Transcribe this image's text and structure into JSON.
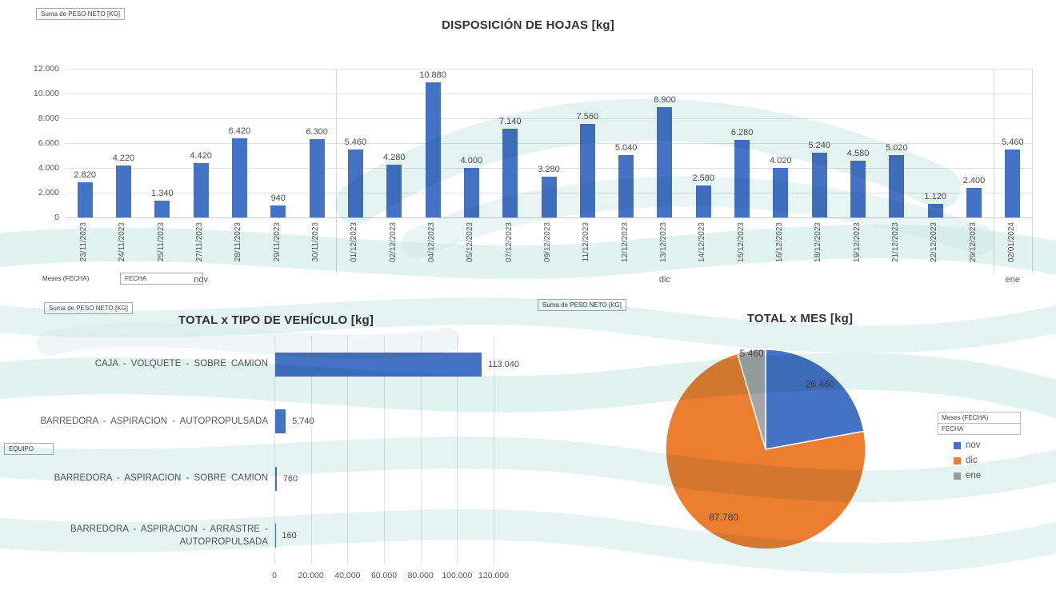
{
  "app": {
    "description": "Excel pivot chart dashboard - leaf disposal weights"
  },
  "colors": {
    "bar_blue": "#4472C4",
    "pie_orange": "#ED7D31",
    "pie_gray": "#A5A5A5",
    "gridline": "#e2e2e2",
    "text_gray": "#595959",
    "watermark_teal": "#cde9e4"
  },
  "field_buttons": {
    "value_field": "Suma de PESO NETO [KG]",
    "meses_group": "Meses (FECHA)",
    "fecha": "FECHA",
    "equipo": "EQUIPO"
  },
  "chart_data": [
    {
      "type": "bar",
      "title": "DISPOSICIÓN DE HOJAS [kg]",
      "value_field_label": "Suma de PESO NETO [KG]",
      "categories": [
        "23/11/2023",
        "24/11/2023",
        "25/11/2023",
        "27/11/2023",
        "28/11/2023",
        "29/11/2023",
        "30/11/2023",
        "01/12/2023",
        "02/12/2023",
        "04/12/2023",
        "05/12/2023",
        "07/12/2023",
        "09/12/2023",
        "11/12/2023",
        "12/12/2023",
        "13/12/2023",
        "14/12/2023",
        "15/12/2023",
        "16/12/2023",
        "18/12/2023",
        "19/12/2023",
        "21/12/2023",
        "22/12/2023",
        "29/12/2023",
        "02/01/2024"
      ],
      "values": [
        2820,
        4220,
        1340,
        4420,
        6420,
        940,
        6300,
        5460,
        4280,
        10880,
        4000,
        7140,
        3280,
        7560,
        5040,
        8900,
        2580,
        6280,
        4020,
        5240,
        4580,
        5020,
        1120,
        2400,
        5460
      ],
      "value_labels": [
        "2.820",
        "4.220",
        "1.340",
        "4.420",
        "6.420",
        "940",
        "6.300",
        "5.460",
        "4.280",
        "10.880",
        "4.000",
        "7.140",
        "3.280",
        "7.560",
        "5.040",
        "8.900",
        "2.580",
        "6.280",
        "4.020",
        "5.240",
        "4.580",
        "5.020",
        "1.120",
        "2.400",
        "5.460"
      ],
      "month_groups": [
        {
          "label": "nov",
          "count": 7
        },
        {
          "label": "dic",
          "count": 17
        },
        {
          "label": "ene",
          "count": 1
        }
      ],
      "y_ticks": [
        "0",
        "2.000",
        "4.000",
        "6.000",
        "8.000",
        "10.000",
        "12.000"
      ],
      "ylim": [
        0,
        12000
      ],
      "grid": true,
      "xlabel": "",
      "ylabel": ""
    },
    {
      "type": "bar",
      "orientation": "horizontal",
      "title": "TOTAL x TIPO DE VEHÍCULO [kg]",
      "value_field_label": "Suma de PESO NETO [KG]",
      "axis_field_label": "EQUIPO",
      "categories": [
        "CAJA - VOLQUETE - SOBRE CAMION",
        "BARREDORA - ASPIRACION - AUTOPROPULSADA",
        "BARREDORA - ASPIRACION - SOBRE CAMION",
        "BARREDORA - ASPIRACION - ARRASTRE - AUTOPROPULSADA"
      ],
      "values": [
        113040,
        5740,
        760,
        160
      ],
      "value_labels": [
        "113.040",
        "5.740",
        "760",
        "160"
      ],
      "x_ticks": [
        "0",
        "20.000",
        "40.000",
        "60.000",
        "80.000",
        "100.000",
        "120.000"
      ],
      "xlim": [
        0,
        120000
      ],
      "grid": true
    },
    {
      "type": "pie",
      "title": "TOTAL x MES [kg]",
      "value_field_label": "Suma de PESO NETO [KG]",
      "categories": [
        "nov",
        "dic",
        "ene"
      ],
      "values": [
        26460,
        87780,
        5460
      ],
      "value_labels": [
        "26.460",
        "87.780",
        "5.460"
      ],
      "slice_colors": [
        "#4472C4",
        "#ED7D31",
        "#A5A5A5"
      ],
      "legend": {
        "header_rows": [
          "Meses (FECHA)",
          "FECHA"
        ],
        "items": [
          "nov",
          "dic",
          "ene"
        ],
        "position": "right"
      }
    }
  ]
}
